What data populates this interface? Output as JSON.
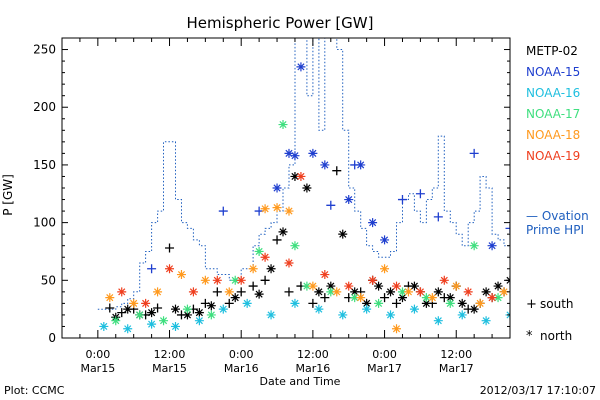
{
  "chart_data": {
    "type": "scatter",
    "title": "Hemispheric Power [GW]",
    "xlabel": "Date and Time",
    "ylabel": "P [GW]",
    "xlim": [
      "2012-03-14T18:00",
      "2012-03-17T21:00"
    ],
    "ylim": [
      0,
      260
    ],
    "y_ticks": [
      "0",
      "50",
      "100",
      "150",
      "200",
      "250"
    ],
    "x_ticks": [
      {
        "time": "0:00",
        "date": "Mar15"
      },
      {
        "time": "12:00",
        "date": "Mar15"
      },
      {
        "time": "0:00",
        "date": "Mar16"
      },
      {
        "time": "12:00",
        "date": "Mar16"
      },
      {
        "time": "0:00",
        "date": "Mar17"
      },
      {
        "time": "12:00",
        "date": "Mar17"
      }
    ],
    "satellite_legend": [
      {
        "name": "METP-02",
        "color": "#000000"
      },
      {
        "name": "NOAA-15",
        "color": "#1f3fcf"
      },
      {
        "name": "NOAA-16",
        "color": "#1fbfdf"
      },
      {
        "name": "NOAA-17",
        "color": "#3fdf7f"
      },
      {
        "name": "NOAA-18",
        "color": "#ff9a1f"
      },
      {
        "name": "NOAA-19",
        "color": "#ef3f1f"
      }
    ],
    "ovation_label": [
      "— Ovation",
      "Prime HPI"
    ],
    "ovation_color": "#1f5fbf",
    "symbol_legend": [
      {
        "symbol": "+",
        "label": "south"
      },
      {
        "symbol": "*",
        "label": "north"
      }
    ],
    "plot_credit": "Plot: CCMC",
    "timestamp": "2012/03/17 17:10:07",
    "ovation_series": {
      "name": "Ovation Prime HPI",
      "start_hour": 0,
      "step_hours": 1,
      "values": [
        25,
        25,
        25,
        27,
        30,
        34,
        40,
        65,
        75,
        100,
        110,
        170,
        170,
        120,
        100,
        95,
        85,
        80,
        60,
        60,
        55,
        55,
        50,
        50,
        60,
        60,
        80,
        90,
        95,
        100,
        110,
        130,
        150,
        260,
        260,
        210,
        260,
        180,
        260,
        260,
        250,
        180,
        130,
        110,
        95,
        80,
        75,
        70,
        70,
        75,
        100,
        120,
        125,
        110,
        100,
        120,
        130,
        175,
        110,
        100,
        90,
        80,
        100,
        110,
        140,
        130,
        90,
        85,
        80,
        95,
        200,
        180,
        140,
        100,
        90,
        130,
        110,
        145,
        240,
        180,
        120,
        100,
        90,
        130,
        100,
        90,
        80,
        75,
        90,
        110,
        130,
        100,
        85,
        80,
        75,
        150,
        130,
        100,
        90,
        80,
        65,
        95,
        150,
        100,
        90,
        80,
        75,
        60
      ]
    },
    "satellite_points": [
      {
        "sat": "NOAA-15",
        "symbol": "+",
        "points": [
          [
            9,
            60
          ],
          [
            21,
            110
          ],
          [
            27,
            110
          ],
          [
            39,
            115
          ],
          [
            43,
            150
          ],
          [
            51,
            120
          ],
          [
            54,
            125
          ],
          [
            57,
            105
          ],
          [
            63,
            160
          ],
          [
            69,
            95
          ],
          [
            75,
            110
          ],
          [
            87,
            100
          ],
          [
            93,
            90
          ],
          [
            99,
            85
          ],
          [
            105,
            80
          ],
          [
            107,
            130
          ]
        ]
      },
      {
        "sat": "NOAA-15",
        "symbol": "*",
        "points": [
          [
            30,
            130
          ],
          [
            32,
            160
          ],
          [
            33,
            158
          ],
          [
            34,
            235
          ],
          [
            36,
            160
          ],
          [
            38,
            150
          ],
          [
            42,
            120
          ],
          [
            44,
            150
          ],
          [
            46,
            100
          ],
          [
            48,
            85
          ],
          [
            66,
            80
          ],
          [
            72,
            70
          ],
          [
            78,
            75
          ],
          [
            84,
            65
          ],
          [
            96,
            70
          ],
          [
            102,
            65
          ]
        ]
      },
      {
        "sat": "METP-02",
        "symbol": "+",
        "points": [
          [
            2,
            26
          ],
          [
            4,
            22
          ],
          [
            6,
            25
          ],
          [
            8,
            20
          ],
          [
            10,
            26
          ],
          [
            12,
            78
          ],
          [
            14,
            20
          ],
          [
            16,
            25
          ],
          [
            18,
            30
          ],
          [
            20,
            40
          ],
          [
            22,
            30
          ],
          [
            24,
            40
          ],
          [
            26,
            45
          ],
          [
            28,
            50
          ],
          [
            30,
            85
          ],
          [
            32,
            40
          ],
          [
            34,
            45
          ],
          [
            36,
            30
          ],
          [
            38,
            35
          ],
          [
            40,
            145
          ],
          [
            42,
            35
          ],
          [
            44,
            40
          ],
          [
            46,
            50
          ],
          [
            48,
            35
          ],
          [
            50,
            30
          ],
          [
            52,
            45
          ],
          [
            54,
            40
          ],
          [
            56,
            30
          ],
          [
            58,
            35
          ],
          [
            60,
            45
          ],
          [
            62,
            25
          ],
          [
            64,
            30
          ],
          [
            66,
            35
          ],
          [
            68,
            40
          ],
          [
            70,
            50
          ],
          [
            72,
            40
          ],
          [
            74,
            35
          ],
          [
            76,
            30
          ],
          [
            78,
            45
          ],
          [
            80,
            55
          ],
          [
            82,
            40
          ],
          [
            84,
            30
          ],
          [
            86,
            25
          ],
          [
            88,
            20
          ],
          [
            90,
            30
          ],
          [
            92,
            25
          ],
          [
            94,
            20
          ],
          [
            96,
            30
          ],
          [
            98,
            25
          ],
          [
            100,
            20
          ],
          [
            102,
            25
          ],
          [
            104,
            15
          ]
        ]
      },
      {
        "sat": "METP-02",
        "symbol": "*",
        "points": [
          [
            3,
            18
          ],
          [
            5,
            25
          ],
          [
            7,
            20
          ],
          [
            9,
            22
          ],
          [
            13,
            25
          ],
          [
            15,
            20
          ],
          [
            17,
            22
          ],
          [
            19,
            28
          ],
          [
            23,
            35
          ],
          [
            27,
            38
          ],
          [
            29,
            60
          ],
          [
            31,
            92
          ],
          [
            33,
            140
          ],
          [
            35,
            130
          ],
          [
            37,
            40
          ],
          [
            39,
            45
          ],
          [
            41,
            90
          ],
          [
            43,
            40
          ],
          [
            45,
            30
          ],
          [
            47,
            45
          ],
          [
            49,
            40
          ],
          [
            51,
            35
          ],
          [
            53,
            45
          ],
          [
            55,
            30
          ],
          [
            57,
            40
          ],
          [
            59,
            35
          ],
          [
            61,
            30
          ],
          [
            63,
            25
          ],
          [
            65,
            40
          ],
          [
            67,
            45
          ],
          [
            69,
            50
          ],
          [
            71,
            45
          ],
          [
            73,
            40
          ],
          [
            75,
            50
          ],
          [
            77,
            45
          ],
          [
            79,
            35
          ],
          [
            81,
            30
          ],
          [
            83,
            25
          ],
          [
            85,
            30
          ],
          [
            87,
            20
          ],
          [
            89,
            25
          ],
          [
            91,
            20
          ],
          [
            93,
            15
          ],
          [
            95,
            25
          ],
          [
            97,
            20
          ],
          [
            99,
            15
          ],
          [
            101,
            20
          ],
          [
            103,
            18
          ]
        ]
      },
      {
        "sat": "NOAA-16",
        "symbol": "*",
        "points": [
          [
            1,
            10
          ],
          [
            5,
            8
          ],
          [
            9,
            12
          ],
          [
            13,
            10
          ],
          [
            17,
            15
          ],
          [
            21,
            25
          ],
          [
            25,
            30
          ],
          [
            29,
            20
          ],
          [
            33,
            30
          ],
          [
            37,
            25
          ],
          [
            41,
            20
          ],
          [
            45,
            25
          ],
          [
            49,
            20
          ],
          [
            53,
            25
          ],
          [
            57,
            15
          ],
          [
            61,
            20
          ],
          [
            65,
            15
          ],
          [
            69,
            20
          ],
          [
            73,
            15
          ],
          [
            77,
            20
          ],
          [
            81,
            15
          ],
          [
            85,
            10
          ],
          [
            89,
            15
          ],
          [
            93,
            10
          ],
          [
            97,
            15
          ],
          [
            101,
            10
          ],
          [
            105,
            12
          ]
        ]
      },
      {
        "sat": "NOAA-17",
        "symbol": "*",
        "points": [
          [
            3,
            15
          ],
          [
            7,
            20
          ],
          [
            11,
            15
          ],
          [
            15,
            25
          ],
          [
            19,
            20
          ],
          [
            23,
            50
          ],
          [
            27,
            75
          ],
          [
            31,
            185
          ],
          [
            33,
            80
          ],
          [
            35,
            45
          ],
          [
            39,
            40
          ],
          [
            43,
            35
          ],
          [
            47,
            30
          ],
          [
            51,
            40
          ],
          [
            55,
            35
          ],
          [
            59,
            30
          ],
          [
            63,
            80
          ],
          [
            67,
            35
          ],
          [
            71,
            30
          ],
          [
            75,
            25
          ],
          [
            79,
            30
          ],
          [
            83,
            25
          ],
          [
            87,
            20
          ],
          [
            91,
            25
          ],
          [
            95,
            20
          ],
          [
            99,
            110
          ],
          [
            103,
            20
          ]
        ]
      },
      {
        "sat": "NOAA-18",
        "symbol": "*",
        "points": [
          [
            2,
            35
          ],
          [
            6,
            30
          ],
          [
            10,
            40
          ],
          [
            14,
            55
          ],
          [
            18,
            50
          ],
          [
            22,
            40
          ],
          [
            26,
            60
          ],
          [
            28,
            112
          ],
          [
            30,
            113
          ],
          [
            32,
            110
          ],
          [
            36,
            45
          ],
          [
            40,
            40
          ],
          [
            44,
            35
          ],
          [
            48,
            60
          ],
          [
            52,
            40
          ],
          [
            56,
            35
          ],
          [
            60,
            45
          ],
          [
            64,
            30
          ],
          [
            68,
            40
          ],
          [
            72,
            35
          ],
          [
            76,
            30
          ],
          [
            80,
            25
          ],
          [
            84,
            20
          ],
          [
            88,
            25
          ],
          [
            92,
            20
          ],
          [
            96,
            25
          ],
          [
            100,
            15
          ],
          [
            104,
            20
          ],
          [
            50,
            8
          ]
        ]
      },
      {
        "sat": "NOAA-19",
        "symbol": "*",
        "points": [
          [
            4,
            40
          ],
          [
            8,
            30
          ],
          [
            12,
            60
          ],
          [
            16,
            40
          ],
          [
            20,
            50
          ],
          [
            24,
            50
          ],
          [
            28,
            70
          ],
          [
            32,
            65
          ],
          [
            34,
            140
          ],
          [
            38,
            55
          ],
          [
            42,
            45
          ],
          [
            46,
            50
          ],
          [
            50,
            45
          ],
          [
            54,
            40
          ],
          [
            58,
            50
          ],
          [
            62,
            40
          ],
          [
            66,
            35
          ],
          [
            70,
            40
          ],
          [
            74,
            45
          ],
          [
            78,
            40
          ],
          [
            82,
            35
          ],
          [
            86,
            30
          ],
          [
            90,
            25
          ],
          [
            94,
            30
          ],
          [
            98,
            25
          ],
          [
            102,
            20
          ],
          [
            106,
            15
          ]
        ]
      }
    ]
  }
}
